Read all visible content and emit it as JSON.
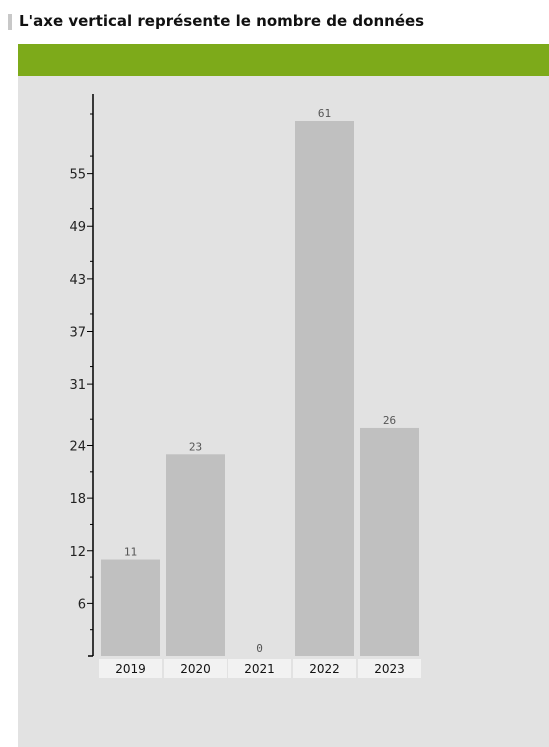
{
  "header": {
    "title": "L'axe vertical représente le nombre de données"
  },
  "colors": {
    "accent_bar": "#7daa1a",
    "panel_background": "#e2e2e2",
    "bar_fill": "#c0c0c0",
    "category_label_background": "#f2f2f2"
  },
  "chart_data": {
    "type": "bar",
    "title": "L'axe vertical représente le nombre de données",
    "xlabel": "",
    "ylabel": "",
    "categories": [
      "2019",
      "2020",
      "2021",
      "2022",
      "2023"
    ],
    "values": [
      11,
      23,
      0,
      61,
      26
    ],
    "data_labels": [
      "11",
      "23",
      "0",
      "61",
      "26"
    ],
    "ylim": [
      0,
      61
    ],
    "y_ticks": [
      6,
      12,
      18,
      24,
      31,
      37,
      43,
      49,
      55
    ],
    "y_tick_labels": [
      "6",
      "12",
      "18",
      "24",
      "31",
      "37",
      "43",
      "49",
      "55"
    ],
    "grid": false,
    "legend": "none"
  }
}
